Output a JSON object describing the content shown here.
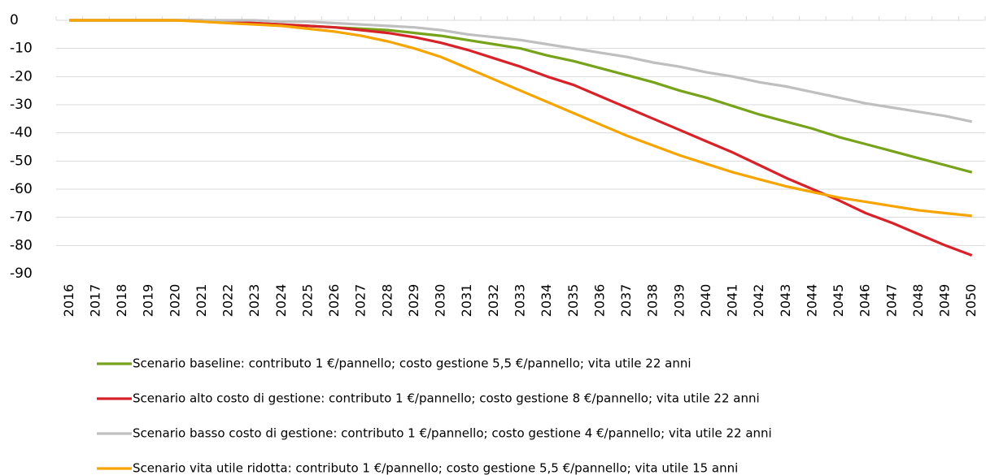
{
  "chart_data": {
    "type": "line",
    "categories": [
      "2016",
      "2017",
      "2018",
      "2019",
      "2020",
      "2021",
      "2022",
      "2023",
      "2024",
      "2025",
      "2026",
      "2027",
      "2028",
      "2029",
      "2030",
      "2031",
      "2032",
      "2033",
      "2034",
      "2035",
      "2036",
      "2037",
      "2038",
      "2039",
      "2040",
      "2041",
      "2042",
      "2043",
      "2044",
      "2045",
      "2046",
      "2047",
      "2048",
      "2049",
      "2050"
    ],
    "series": [
      {
        "name": "Scenario baseline: contributo 1 €/pannello; costo gestione 5,5 €/pannello; vita utile 22 anni",
        "color": "#77a31a",
        "values": [
          0,
          0,
          0,
          0,
          0,
          0,
          -0.5,
          -1,
          -1.5,
          -2,
          -2.5,
          -3,
          -3.5,
          -4.5,
          -5.5,
          -7,
          -8.5,
          -10,
          -12.5,
          -14.5,
          -17,
          -19.5,
          -22,
          -25,
          -27.5,
          -30.5,
          -33.5,
          -36,
          -38.5,
          -41.5,
          -44,
          -46.5,
          -49,
          -51.5,
          -54
        ]
      },
      {
        "name": "Scenario alto costo di gestione: contributo 1 €/pannello; costo gestione 8 €/pannello; vita utile 22 anni",
        "color": "#d7222a",
        "values": [
          0,
          0,
          0,
          0,
          0,
          0,
          -0.5,
          -1,
          -1.5,
          -2,
          -2.5,
          -3.5,
          -4.5,
          -6,
          -8,
          -10.5,
          -13.5,
          -16.5,
          -20,
          -23,
          -27,
          -31,
          -35,
          -39,
          -43,
          -47,
          -51.5,
          -56,
          -60,
          -64,
          -68.5,
          -72,
          -76,
          -80,
          -83.5
        ]
      },
      {
        "name": "Scenario basso costo di gestione: contributo 1 €/pannello; costo gestione 4 €/pannello; vita utile 22 anni",
        "color": "#bfbfbf",
        "values": [
          0,
          0,
          0,
          0,
          0,
          0,
          0,
          0,
          -0.5,
          -0.5,
          -1,
          -1.5,
          -2,
          -2.5,
          -3.5,
          -5,
          -6,
          -7,
          -8.5,
          -10,
          -11.5,
          -13,
          -15,
          -16.5,
          -18.5,
          -20,
          -22,
          -23.5,
          -25.5,
          -27.5,
          -29.5,
          -31,
          -32.5,
          -34,
          -36
        ]
      },
      {
        "name": "Scenario vita utile ridotta: contributo 1 €/pannello; costo gestione 5,5 €/pannello; vita utile 15 anni",
        "color": "#f5a400",
        "values": [
          0,
          0,
          0,
          0,
          0,
          -0.5,
          -1,
          -1.5,
          -2,
          -3,
          -4,
          -5.5,
          -7.5,
          -10,
          -13,
          -17,
          -21,
          -25,
          -29,
          -33,
          -37,
          -41,
          -44.5,
          -48,
          -51,
          -54,
          -56.5,
          -59,
          -61,
          -63,
          -64.5,
          -66,
          -67.5,
          -68.5,
          -69.5
        ]
      }
    ],
    "ylim": [
      -90,
      0
    ],
    "yticks": [
      0,
      -10,
      -20,
      -30,
      -40,
      -50,
      -60,
      -70,
      -80,
      -90
    ],
    "grid": true
  }
}
